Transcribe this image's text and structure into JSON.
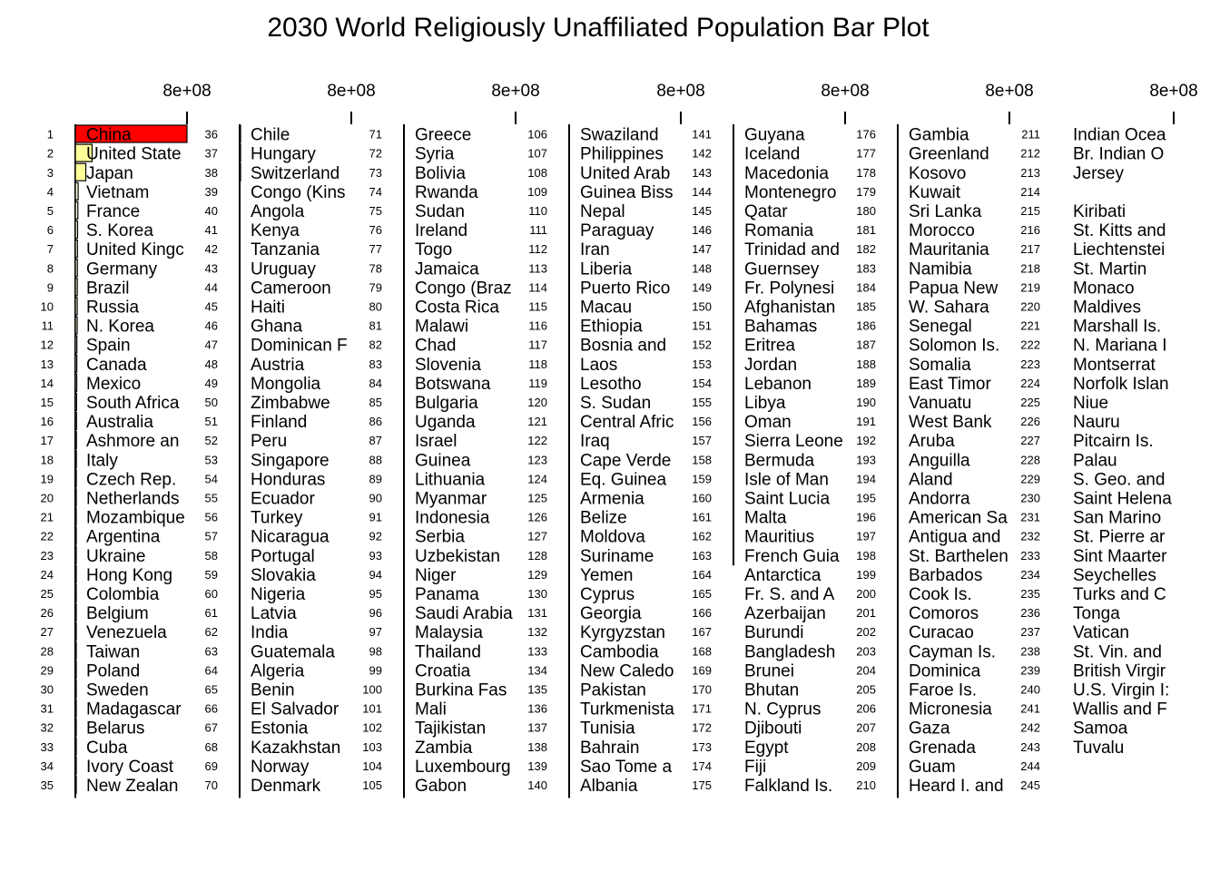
{
  "title": "2030 World Religiously Unaffiliated Population Bar Plot",
  "chart_data": {
    "type": "bar",
    "orientation": "horizontal",
    "title": "2030 World Religiously Unaffiliated Population Bar Plot",
    "axis_tick_label": "8e+08",
    "axis_tick_value": 800000000,
    "columns": 7,
    "rows_per_column": 35,
    "ranks": [
      1,
      2,
      3,
      4,
      5,
      6,
      7,
      8,
      9,
      10,
      11,
      12,
      13,
      14,
      15,
      16,
      17,
      18,
      19,
      20,
      21,
      22,
      23,
      24,
      25,
      26,
      27,
      28,
      29,
      30,
      31,
      32,
      33,
      34,
      35,
      36,
      37,
      38,
      39,
      40,
      41,
      42,
      43,
      44,
      45,
      46,
      47,
      48,
      49,
      50,
      51,
      52,
      53,
      54,
      55,
      56,
      57,
      58,
      59,
      60,
      61,
      62,
      63,
      64,
      65,
      66,
      67,
      68,
      69,
      70,
      71,
      72,
      73,
      74,
      75,
      76,
      77,
      78,
      79,
      80,
      81,
      82,
      83,
      84,
      85,
      86,
      87,
      88,
      89,
      90,
      91,
      92,
      93,
      94,
      95,
      96,
      97,
      98,
      99,
      100,
      101,
      102,
      103,
      104,
      105,
      106,
      107,
      108,
      109,
      110,
      111,
      112,
      113,
      114,
      115,
      116,
      117,
      118,
      119,
      120,
      121,
      122,
      123,
      124,
      125,
      126,
      127,
      128,
      129,
      130,
      131,
      132,
      133,
      134,
      135,
      136,
      137,
      138,
      139,
      140,
      141,
      142,
      143,
      144,
      145,
      146,
      147,
      148,
      149,
      150,
      151,
      152,
      153,
      154,
      155,
      156,
      157,
      158,
      159,
      160,
      161,
      162,
      163,
      164,
      165,
      166,
      167,
      168,
      169,
      170,
      171,
      172,
      173,
      174,
      175,
      176,
      177,
      178,
      179,
      180,
      181,
      182,
      183,
      184,
      185,
      186,
      187,
      188,
      189,
      190,
      191,
      192,
      193,
      194,
      195,
      196,
      197,
      198,
      199,
      200,
      201,
      202,
      203,
      204,
      205,
      206,
      207,
      208,
      209,
      210,
      211,
      212,
      213,
      214,
      215,
      216,
      217,
      218,
      219,
      220,
      221,
      222,
      223,
      224,
      225,
      226,
      227,
      228,
      229,
      230,
      231,
      232,
      233,
      234,
      235,
      236,
      237,
      238,
      239,
      240,
      241,
      242,
      243,
      244,
      245
    ],
    "categories": [
      "China",
      "United State",
      "Japan",
      "Vietnam",
      "France",
      "S. Korea",
      "United Kingc",
      "Germany",
      "Brazil",
      "Russia",
      "N. Korea",
      "Spain",
      "Canada",
      "Mexico",
      "South Africa",
      "Australia",
      "Ashmore an",
      "Italy",
      "Czech Rep.",
      "Netherlands",
      "Mozambique",
      "Argentina",
      "Ukraine",
      "Hong Kong",
      "Colombia",
      "Belgium",
      "Venezuela",
      "Taiwan",
      "Poland",
      "Sweden",
      "Madagascar",
      "Belarus",
      "Cuba",
      "Ivory Coast",
      "New Zealan",
      "Chile",
      "Hungary",
      "Switzerland",
      "Congo (Kins",
      "Angola",
      "Kenya",
      "Tanzania",
      "Uruguay",
      "Cameroon",
      "Haiti",
      "Ghana",
      "Dominican F",
      "Austria",
      "Mongolia",
      "Zimbabwe",
      "Finland",
      "Peru",
      "Singapore",
      "Honduras",
      "Ecuador",
      "Turkey",
      "Nicaragua",
      "Portugal",
      "Slovakia",
      "Nigeria",
      "Latvia",
      "India",
      "Guatemala",
      "Algeria",
      "Benin",
      "El Salvador",
      "Estonia",
      "Kazakhstan",
      "Norway",
      "Denmark",
      "Greece",
      "Syria",
      "Bolivia",
      "Rwanda",
      "Sudan",
      "Ireland",
      "Togo",
      "Jamaica",
      "Congo (Braz",
      "Costa Rica",
      "Malawi",
      "Chad",
      "Slovenia",
      "Botswana",
      "Bulgaria",
      "Uganda",
      "Israel",
      "Guinea",
      "Lithuania",
      "Myanmar",
      "Indonesia",
      "Serbia",
      "Uzbekistan",
      "Niger",
      "Panama",
      "Saudi Arabia",
      "Malaysia",
      "Thailand",
      "Croatia",
      "Burkina Fas",
      "Mali",
      "Tajikistan",
      "Zambia",
      "Luxembourg",
      "Gabon",
      "Swaziland",
      "Philippines",
      "United Arab",
      "Guinea Biss",
      "Nepal",
      "Paraguay",
      "Iran",
      "Liberia",
      "Puerto Rico",
      "Macau",
      "Ethiopia",
      "Bosnia and",
      "Laos",
      "Lesotho",
      "S. Sudan",
      "Central Afric",
      "Iraq",
      "Cape Verde",
      "Eq. Guinea",
      "Armenia",
      "Belize",
      "Moldova",
      "Suriname",
      "Yemen",
      "Cyprus",
      "Georgia",
      "Kyrgyzstan",
      "Cambodia",
      "New Caledo",
      "Pakistan",
      "Turkmenista",
      "Tunisia",
      "Bahrain",
      "Sao Tome a",
      "Albania",
      "Guyana",
      "Iceland",
      "Macedonia",
      "Montenegro",
      "Qatar",
      "Romania",
      "Trinidad and",
      "Guernsey",
      "Fr. Polynesi",
      "Afghanistan",
      "Bahamas",
      "Eritrea",
      "Jordan",
      "Lebanon",
      "Libya",
      "Oman",
      "Sierra Leone",
      "Bermuda",
      "Isle of Man",
      "Saint Lucia",
      "Malta",
      "Mauritius",
      "French Guia",
      "Antarctica",
      "Fr. S. and A",
      "Azerbaijan",
      "Burundi",
      "Bangladesh",
      "Brunei",
      "Bhutan",
      "N. Cyprus",
      "Djibouti",
      "Egypt",
      "Fiji",
      "Falkland Is.",
      "Gambia",
      "Greenland",
      "Kosovo",
      "Kuwait",
      "Sri Lanka",
      "Morocco",
      "Mauritania",
      "Namibia",
      "Papua New",
      "W. Sahara",
      "Senegal",
      "Solomon Is.",
      "Somalia",
      "East Timor",
      "Vanuatu",
      "West Bank",
      "Aruba",
      "Anguilla",
      "Aland",
      "Andorra",
      "American Sa",
      "Antigua and",
      "St. Barthelen",
      "Barbados",
      "Cook Is.",
      "Comoros",
      "Curacao",
      "Cayman Is.",
      "Dominica",
      "Faroe Is.",
      "Micronesia",
      "Gaza",
      "Grenada",
      "Guam",
      "Heard I. and",
      "Indian Ocea",
      "Br. Indian O",
      "Jersey",
      "",
      "Kiribati",
      "St. Kitts and",
      "Liechtenstei",
      "St. Martin",
      "Monaco",
      "Maldives",
      "Marshall Is.",
      "N. Mariana I",
      "Montserrat",
      "Norfolk Islan",
      "Niue",
      "Nauru",
      "Pitcairn Is.",
      "Palau",
      "S. Geo. and",
      "Saint Helena",
      "San Marino",
      "St. Pierre ar",
      "Sint Maarter",
      "Seychelles",
      "Turks and C",
      "Tonga",
      "Vatican",
      "St. Vin. and",
      "British Virgir",
      "U.S. Virgin I:",
      "Wallis and F",
      "Samoa",
      "Tuvalu"
    ],
    "values": [
      800000000,
      120000000,
      75000000,
      20000000,
      18000000,
      16000000,
      15000000,
      14500000,
      14000000,
      13500000,
      13000000,
      11000000,
      10500000,
      10000000,
      9000000,
      8500000,
      8000000,
      7500000,
      7000000,
      6800000,
      6500000,
      6200000,
      6000000,
      5800000,
      5600000,
      5400000,
      5200000,
      5000000,
      4800000,
      4600000,
      4400000,
      4200000,
      4000000,
      3800000,
      3600000,
      3500000,
      3400000,
      3300000,
      3200000,
      3100000,
      3000000,
      2900000,
      2800000,
      2700000,
      2600000,
      2500000,
      2400000,
      2300000,
      2200000,
      2100000,
      2000000,
      1950000,
      1900000,
      1850000,
      1800000,
      1750000,
      1700000,
      1650000,
      1600000,
      1550000,
      1500000,
      1450000,
      1400000,
      1350000,
      1300000,
      1250000,
      1200000,
      1150000,
      1100000,
      1050000,
      1000000,
      980000,
      960000,
      940000,
      920000,
      900000,
      880000,
      860000,
      840000,
      820000,
      800000,
      780000,
      760000,
      740000,
      720000,
      700000,
      680000,
      660000,
      640000,
      620000,
      600000,
      580000,
      560000,
      540000,
      520000,
      500000,
      480000,
      460000,
      440000,
      420000,
      400000,
      380000,
      360000,
      340000,
      320000,
      300000,
      290000,
      280000,
      270000,
      260000,
      250000,
      240000,
      230000,
      220000,
      210000,
      200000,
      190000,
      180000,
      170000,
      160000,
      150000,
      140000,
      130000,
      120000,
      110000,
      100000,
      95000,
      90000,
      85000,
      80000,
      75000,
      70000,
      65000,
      60000,
      55000,
      50000,
      45000,
      40000,
      35000,
      30000,
      28000,
      26000,
      24000,
      22000,
      20000,
      18000,
      16000,
      14000,
      12000,
      10000,
      9000,
      8000,
      7000,
      6000,
      5000,
      4500,
      4000,
      3500,
      3000,
      2500,
      2000,
      1500,
      1000,
      0,
      0,
      0,
      0,
      0,
      0,
      0,
      0,
      0,
      0,
      0,
      0,
      0,
      0,
      0,
      0,
      0,
      0,
      0,
      0,
      0,
      0,
      0,
      0,
      0,
      0,
      0,
      0,
      0,
      0,
      0,
      0,
      0,
      0,
      0,
      0,
      0,
      0,
      0,
      0,
      0,
      0,
      0,
      0,
      0,
      0,
      0,
      0,
      0,
      0,
      0,
      0,
      0,
      0,
      0,
      0,
      0,
      0,
      0,
      0,
      0,
      0,
      0,
      0,
      0,
      0,
      0,
      0,
      0,
      0,
      0,
      0,
      0,
      0,
      0,
      0,
      0,
      0,
      0,
      0
    ],
    "bar_colors": {
      "1": "#FF0000",
      "2": "#FFFF99",
      "3": "#FFFF99",
      "default": "#FFFFE0"
    },
    "axis_color": "#000000",
    "text_color": "#000000"
  }
}
